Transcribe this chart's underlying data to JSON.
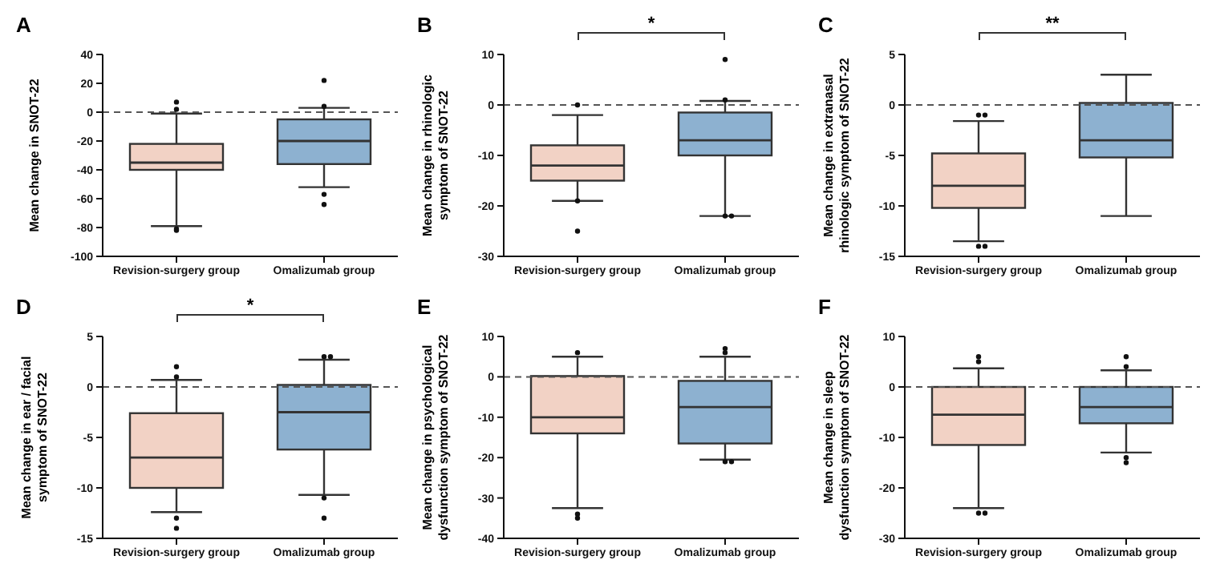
{
  "chart_data": [
    {
      "type": "box",
      "title": "A",
      "ylabel": "Mean change in SNOT-22",
      "categories": [
        "Revision-surgery group",
        "Omalizumab group"
      ],
      "colors": [
        "#f2d2c5",
        "#8db1d0"
      ],
      "ylim": [
        -100,
        40
      ],
      "yticks": [
        -100,
        -80,
        -60,
        -40,
        -20,
        0,
        20,
        40
      ],
      "ref_lines": [
        {
          "axis": "y",
          "value": 0,
          "line_style": "dashed"
        }
      ],
      "boxes": [
        {
          "low": -79,
          "q1": -40,
          "median": -35,
          "q3": -22,
          "high": -1,
          "outliers": [
            7,
            2,
            -82,
            -81
          ]
        },
        {
          "low": -52,
          "q1": -36,
          "median": -20,
          "q3": -5,
          "high": 3,
          "outliers": [
            22,
            4,
            -57,
            -64
          ]
        }
      ]
    },
    {
      "type": "box",
      "title": "B",
      "ylabel": "Mean change in rhinologic symptom of SNOT-22",
      "categories": [
        "Revision-surgery group",
        "Omalizumab group"
      ],
      "colors": [
        "#f2d2c5",
        "#8db1d0"
      ],
      "ylim": [
        -30,
        10
      ],
      "yticks": [
        -30,
        -20,
        -10,
        0,
        10
      ],
      "ref_lines": [
        {
          "axis": "y",
          "value": 0,
          "line_style": "dashed"
        }
      ],
      "annotations": [
        "*"
      ],
      "boxes": [
        {
          "low": -19,
          "q1": -15,
          "median": -12,
          "q3": -8,
          "high": -2,
          "outliers": [
            0,
            -19,
            -25
          ]
        },
        {
          "low": -22,
          "q1": -10,
          "median": -7,
          "q3": -1.5,
          "high": 0.8,
          "outliers": [
            9,
            1,
            -22,
            -22
          ]
        }
      ]
    },
    {
      "type": "box",
      "title": "C",
      "ylabel": "Mean change in extranasal rhinologic symptom of SNOT-22",
      "categories": [
        "Revision-surgery group",
        "Omalizumab group"
      ],
      "colors": [
        "#f2d2c5",
        "#8db1d0"
      ],
      "ylim": [
        -15,
        5
      ],
      "yticks": [
        -15,
        -10,
        -5,
        0,
        5
      ],
      "ref_lines": [
        {
          "axis": "y",
          "value": 0,
          "line_style": "dashed"
        }
      ],
      "annotations": [
        "**"
      ],
      "boxes": [
        {
          "low": -13.5,
          "q1": -10.2,
          "median": -8,
          "q3": -4.8,
          "high": -1.6,
          "outliers": [
            -1,
            -1,
            -14,
            -14
          ]
        },
        {
          "low": -11,
          "q1": -5.2,
          "median": -3.5,
          "q3": 0.2,
          "high": 3
        }
      ]
    },
    {
      "type": "box",
      "title": "D",
      "ylabel": "Mean change in ear / facial symptom of SNOT-22",
      "categories": [
        "Revision-surgery group",
        "Omalizumab group"
      ],
      "colors": [
        "#f2d2c5",
        "#8db1d0"
      ],
      "ylim": [
        -15,
        5
      ],
      "yticks": [
        -15,
        -10,
        -5,
        0,
        5
      ],
      "ref_lines": [
        {
          "axis": "y",
          "value": 0,
          "line_style": "dashed"
        }
      ],
      "annotations": [
        "*"
      ],
      "boxes": [
        {
          "low": -12.4,
          "q1": -10,
          "median": -7,
          "q3": -2.6,
          "high": 0.7,
          "outliers": [
            2,
            1,
            -13,
            -14
          ]
        },
        {
          "low": -10.7,
          "q1": -6.2,
          "median": -2.5,
          "q3": 0.2,
          "high": 2.7,
          "outliers": [
            3,
            3,
            -11,
            -13
          ]
        }
      ]
    },
    {
      "type": "box",
      "title": "E",
      "ylabel": "Mean change in psychological dysfunction symptom of SNOT-22",
      "categories": [
        "Revision-surgery group",
        "Omalizumab group"
      ],
      "colors": [
        "#f2d2c5",
        "#8db1d0"
      ],
      "ylim": [
        -40,
        10
      ],
      "yticks": [
        -40,
        -30,
        -20,
        -10,
        0,
        10
      ],
      "ref_lines": [
        {
          "axis": "y",
          "value": 0,
          "line_style": "dashed"
        }
      ],
      "boxes": [
        {
          "low": -32.5,
          "q1": -14,
          "median": -10,
          "q3": 0.2,
          "high": 5,
          "outliers": [
            6,
            -34,
            -35
          ]
        },
        {
          "low": -20.5,
          "q1": -16.5,
          "median": -7.5,
          "q3": -1,
          "high": 5,
          "outliers": [
            7,
            6,
            -21,
            -21
          ]
        }
      ]
    },
    {
      "type": "box",
      "title": "F",
      "ylabel": "Mean change in sleep dysfunction symptom of SNOT-22",
      "categories": [
        "Revision-surgery group",
        "Omalizumab group"
      ],
      "colors": [
        "#f2d2c5",
        "#8db1d0"
      ],
      "ylim": [
        -30,
        10
      ],
      "yticks": [
        -30,
        -20,
        -10,
        0,
        10
      ],
      "ref_lines": [
        {
          "axis": "y",
          "value": 0,
          "line_style": "dashed"
        }
      ],
      "boxes": [
        {
          "low": -24,
          "q1": -11.5,
          "median": -5.5,
          "q3": 0,
          "high": 3.7,
          "outliers": [
            6,
            5,
            -25,
            -25
          ]
        },
        {
          "low": -13,
          "q1": -7.2,
          "median": -4,
          "q3": 0,
          "high": 3.3,
          "outliers": [
            6,
            4,
            -14,
            -15
          ]
        }
      ]
    }
  ]
}
